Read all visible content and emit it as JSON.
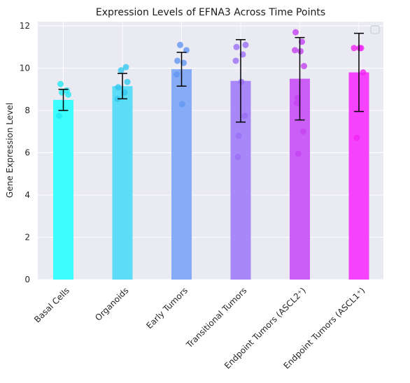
{
  "chart_data": {
    "type": "bar",
    "title": "Expression Levels of EFNA3 Across Time Points",
    "xlabel": "",
    "ylabel": "Gene Expression Level",
    "ylim": [
      0,
      12.2
    ],
    "yticks": [
      "0",
      "2",
      "4",
      "6",
      "8",
      "10",
      "12"
    ],
    "grid": true,
    "legend": "top-right (empty)",
    "categories": [
      "Basal Cells",
      "Organoids",
      "Early Tumors",
      "Transitional Tumors",
      "Endpoint Tumors (ASCL2⁺)",
      "Endpoint Tumors (ASCL1⁺)"
    ],
    "values": [
      8.5,
      9.15,
      9.95,
      9.4,
      9.5,
      9.8
    ],
    "errors": [
      0.5,
      0.6,
      0.8,
      1.95,
      1.95,
      1.85
    ],
    "points": [
      [
        9.25,
        8.95,
        8.85,
        8.75,
        7.75
      ],
      [
        10.05,
        9.9,
        9.35,
        9.1,
        8.85,
        8.55
      ],
      [
        11.1,
        10.85,
        10.35,
        10.25,
        9.7,
        8.3
      ],
      [
        11.1,
        11.0,
        10.65,
        10.35,
        9.35,
        7.75,
        6.8,
        5.8
      ],
      [
        11.7,
        11.25,
        10.85,
        10.8,
        10.1,
        8.6,
        8.35,
        7.0,
        5.95
      ],
      [
        10.95,
        10.95,
        10.95,
        9.8,
        6.7
      ]
    ],
    "colors": [
      "#3dfdff",
      "#5ddcf7",
      "#86acf8",
      "#a887f8",
      "#cb5ef6",
      "#f542fc"
    ],
    "point_colors": [
      "#22e8f2",
      "#35c8f0",
      "#6296f2",
      "#9a6ef4",
      "#c442f2",
      "#f024f4"
    ]
  }
}
